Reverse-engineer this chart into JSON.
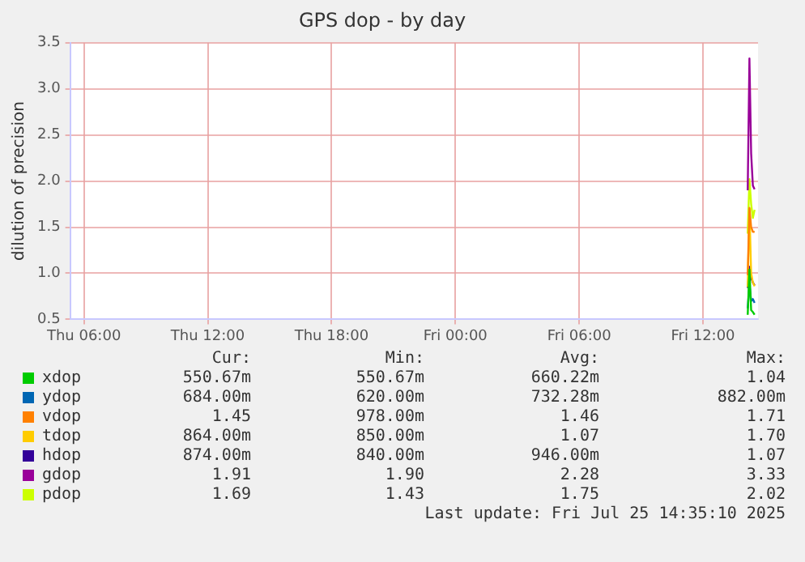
{
  "chart_data": {
    "type": "line",
    "title": "GPS dop - by day",
    "ylabel": "dilution of precision",
    "x": [
      "2025-07-25T14:10",
      "2025-07-25T14:15",
      "2025-07-25T14:20",
      "2025-07-25T14:25",
      "2025-07-25T14:30"
    ],
    "series": [
      {
        "name": "xdop",
        "color": "#00cc00",
        "values": [
          0.55,
          1.04,
          0.6,
          0.58,
          0.55
        ]
      },
      {
        "name": "ydop",
        "color": "#0066b3",
        "values": [
          0.62,
          0.88,
          0.7,
          0.72,
          0.68
        ]
      },
      {
        "name": "vdop",
        "color": "#ff8000",
        "values": [
          0.98,
          1.71,
          1.5,
          1.45,
          1.45
        ]
      },
      {
        "name": "tdop",
        "color": "#ffcc00",
        "values": [
          0.85,
          1.7,
          1.0,
          0.9,
          0.86
        ]
      },
      {
        "name": "hdop",
        "color": "#330099",
        "values": [
          0.84,
          1.07,
          0.95,
          0.9,
          0.87
        ]
      },
      {
        "name": "gdop",
        "color": "#990099",
        "values": [
          1.9,
          3.33,
          2.3,
          1.95,
          1.91
        ]
      },
      {
        "name": "pdop",
        "color": "#ccff00",
        "values": [
          1.43,
          2.02,
          1.75,
          1.6,
          1.69
        ]
      }
    ],
    "xlim": [
      "2025-07-24T05:20",
      "2025-07-25T14:40"
    ],
    "xticks": [
      {
        "value": "2025-07-24T06:00",
        "label": "Thu 06:00"
      },
      {
        "value": "2025-07-24T12:00",
        "label": "Thu 12:00"
      },
      {
        "value": "2025-07-24T18:00",
        "label": "Thu 18:00"
      },
      {
        "value": "2025-07-25T00:00",
        "label": "Fri 00:00"
      },
      {
        "value": "2025-07-25T06:00",
        "label": "Fri 06:00"
      },
      {
        "value": "2025-07-25T12:00",
        "label": "Fri 12:00"
      }
    ],
    "ylim": [
      0.5,
      3.5
    ],
    "yticks": [
      {
        "value": 0.5,
        "label": "0.5"
      },
      {
        "value": 1,
        "label": "1.0"
      },
      {
        "value": 1.5,
        "label": "1.5"
      },
      {
        "value": 2,
        "label": "2.0"
      },
      {
        "value": 2.5,
        "label": "2.5"
      },
      {
        "value": 3,
        "label": "3.0"
      },
      {
        "value": 3.5,
        "label": "3.5"
      }
    ],
    "grid": true,
    "legend": "bottom",
    "marker": "none",
    "line_style": "solid",
    "annotations": [
      "Cur:",
      "Min:",
      "Avg:",
      "Max:",
      "550.67m",
      "550.67m",
      "660.22m",
      "1.04",
      "684.00m",
      "620.00m",
      "732.28m",
      "882.00m",
      "1.45",
      "978.00m",
      "1.46",
      "1.71",
      "864.00m",
      "850.00m",
      "1.07",
      "1.70",
      "874.00m",
      "840.00m",
      "946.00m",
      "1.07",
      "1.91",
      "1.90",
      "2.28",
      "3.33",
      "1.69",
      "1.43",
      "1.75",
      "2.02",
      "Last update: Fri Jul 25 14:35:10 2025"
    ]
  }
}
